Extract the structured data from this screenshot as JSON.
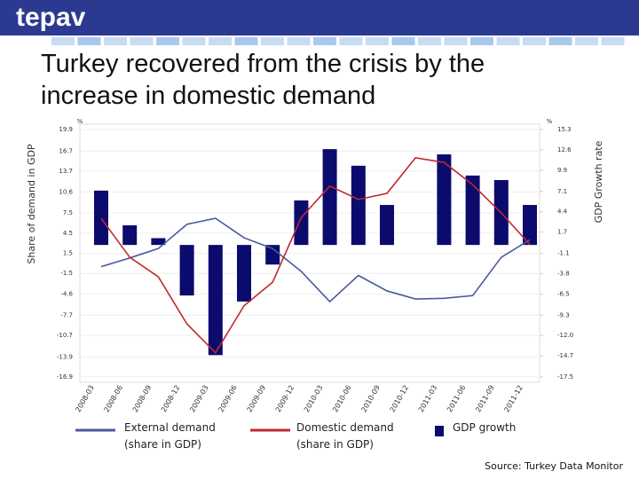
{
  "header": {
    "logo": "tepav"
  },
  "chart_data": {
    "type": "combo",
    "title": "Turkey recovered from the crisis by the increase in domestic demand",
    "y_label": "Share of demand in GDP",
    "y2_label": "GDP Growth rate",
    "y_unit": "%",
    "y2_unit": "%",
    "source": "Source: Turkey Data Monitor",
    "categories": [
      "2008-03",
      "2008-06",
      "2008-09",
      "2008-12",
      "2009-03",
      "2009-06",
      "2009-09",
      "2009-12",
      "2010-03",
      "2010-06",
      "2010-09",
      "2010-12",
      "2011-03",
      "2011-06",
      "2011-09",
      "2011-12"
    ],
    "series": [
      {
        "name": "External demand (share in GDP)",
        "type": "line",
        "color": "#4a5a9c",
        "values": [
          -0.5,
          0.8,
          2.2,
          5.8,
          6.7,
          3.8,
          2.2,
          -1.2,
          -5.7,
          -1.8,
          -4.1,
          -5.3,
          -5.2,
          -4.8,
          0.9,
          3.5
        ]
      },
      {
        "name": "Domestic demand (share in GDP)",
        "type": "line",
        "color": "#c0282d",
        "values": [
          6.7,
          0.9,
          -2.0,
          -9.0,
          -13.3,
          -6.3,
          -2.8,
          6.8,
          11.5,
          9.5,
          10.4,
          15.7,
          15.0,
          11.7,
          7.5,
          2.8
        ]
      },
      {
        "name": "GDP growth",
        "type": "bar",
        "axis": "y2",
        "color": "#0b0b6e",
        "values": [
          7.2,
          2.6,
          0.9,
          -6.7,
          -14.6,
          -7.5,
          -2.6,
          5.9,
          12.7,
          10.5,
          5.3,
          null,
          12.0,
          9.2,
          8.6,
          5.3
        ]
      }
    ],
    "ylim": [
      -16.9,
      19.9
    ],
    "yticks": [
      19.9,
      16.7,
      13.7,
      10.6,
      7.5,
      4.5,
      1.5,
      -1.5,
      -4.6,
      -7.7,
      -10.7,
      -13.9,
      -16.9
    ],
    "y2lim": [
      -17.5,
      15.3
    ],
    "y2ticks": [
      15.3,
      12.6,
      9.9,
      7.1,
      4.4,
      1.7,
      -1.1,
      -3.8,
      -6.5,
      -9.3,
      {
        "value": -12,
        "label": "-12.0"
      },
      -14.7,
      -17.5
    ],
    "grid": true
  }
}
